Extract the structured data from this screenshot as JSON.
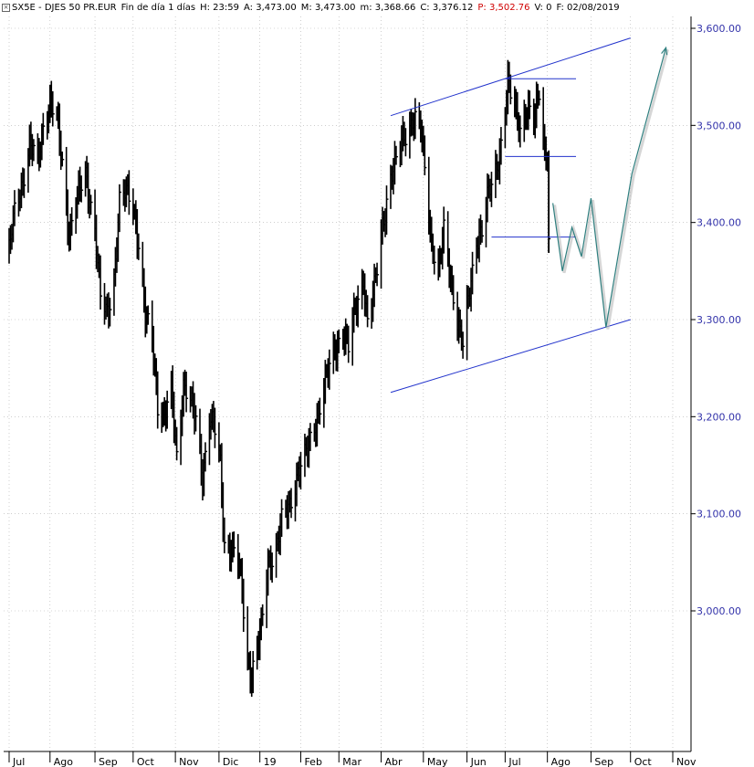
{
  "header": {
    "symbol": "SX5E - DJES 50 PR.EUR",
    "period": "Fin de día 1 días",
    "h_label": "H:",
    "h_value": "23:59",
    "a_label": "A:",
    "a_value": "3,473.00",
    "m_label": "M:",
    "m_value": "3,473.00",
    "mn_label": "m:",
    "mn_value": "3,368.66",
    "c_label": "C:",
    "c_value": "3,376.12",
    "p_label": "P:",
    "p_value": "3,502.76",
    "v_label": "V:",
    "v_value": "0",
    "f_label": "F:",
    "f_value": "02/08/2019"
  },
  "colors": {
    "price": "#000000",
    "channel": "#2233cc",
    "projection": "#2f7f7f",
    "axis_text": "#3333aa",
    "grid": "#b0b0b0"
  },
  "chart_data": {
    "type": "bar",
    "ylim": [
      2900,
      3600
    ],
    "yticks": [
      "3,600.00",
      "3,500.00",
      "3,400.00",
      "3,300.00",
      "3,200.00",
      "3,100.00",
      "3,000.00"
    ],
    "ytick_values": [
      3600,
      3500,
      3400,
      3300,
      3200,
      3100,
      3000
    ],
    "xticks": [
      "Jul",
      "Ago",
      "Sep",
      "Oct",
      "Nov",
      "Dic",
      "19",
      "Feb",
      "Mar",
      "Abr",
      "May",
      "Jun",
      "Jul",
      "Ago",
      "Sep",
      "Oct",
      "Nov"
    ],
    "xtick_dates": [
      "2018-07-02",
      "2018-08-01",
      "2018-09-03",
      "2018-10-01",
      "2018-11-01",
      "2018-12-03",
      "2019-01-02",
      "2019-02-01",
      "2019-03-01",
      "2019-04-01",
      "2019-05-02",
      "2019-06-03",
      "2019-07-01",
      "2019-08-01",
      "2019-09-02",
      "2019-10-01",
      "2019-11-01"
    ],
    "price_path": [
      [
        "2018-07-02",
        3370
      ],
      [
        "2018-07-06",
        3410
      ],
      [
        "2018-07-12",
        3445
      ],
      [
        "2018-07-17",
        3480
      ],
      [
        "2018-07-23",
        3460
      ],
      [
        "2018-07-27",
        3500
      ],
      [
        "2018-08-01",
        3525
      ],
      [
        "2018-08-06",
        3505
      ],
      [
        "2018-08-10",
        3460
      ],
      [
        "2018-08-15",
        3390
      ],
      [
        "2018-08-20",
        3420
      ],
      [
        "2018-08-27",
        3450
      ],
      [
        "2018-09-03",
        3395
      ],
      [
        "2018-09-07",
        3320
      ],
      [
        "2018-09-12",
        3305
      ],
      [
        "2018-09-17",
        3345
      ],
      [
        "2018-09-21",
        3420
      ],
      [
        "2018-09-26",
        3430
      ],
      [
        "2018-10-01",
        3420
      ],
      [
        "2018-10-05",
        3380
      ],
      [
        "2018-10-10",
        3300
      ],
      [
        "2018-10-15",
        3280
      ],
      [
        "2018-10-19",
        3215
      ],
      [
        "2018-10-24",
        3200
      ],
      [
        "2018-10-29",
        3225
      ],
      [
        "2018-11-02",
        3160
      ],
      [
        "2018-11-07",
        3235
      ],
      [
        "2018-11-12",
        3215
      ],
      [
        "2018-11-16",
        3195
      ],
      [
        "2018-11-21",
        3140
      ],
      [
        "2018-11-26",
        3200
      ],
      [
        "2018-11-30",
        3185
      ],
      [
        "2018-12-04",
        3150
      ],
      [
        "2018-12-07",
        3070
      ],
      [
        "2018-12-12",
        3065
      ],
      [
        "2018-12-17",
        3050
      ],
      [
        "2018-12-20",
        3020
      ],
      [
        "2018-12-24",
        2950
      ],
      [
        "2018-12-27",
        2935
      ],
      [
        "2019-01-03",
        2980
      ],
      [
        "2019-01-08",
        3050
      ],
      [
        "2019-01-14",
        3065
      ],
      [
        "2019-01-18",
        3090
      ],
      [
        "2019-01-24",
        3110
      ],
      [
        "2019-01-30",
        3145
      ],
      [
        "2019-02-05",
        3160
      ],
      [
        "2019-02-11",
        3190
      ],
      [
        "2019-02-18",
        3230
      ],
      [
        "2019-02-25",
        3265
      ],
      [
        "2019-03-04",
        3290
      ],
      [
        "2019-03-08",
        3270
      ],
      [
        "2019-03-13",
        3310
      ],
      [
        "2019-03-19",
        3345
      ],
      [
        "2019-03-22",
        3295
      ],
      [
        "2019-03-27",
        3330
      ],
      [
        "2019-04-02",
        3400
      ],
      [
        "2019-04-08",
        3445
      ],
      [
        "2019-04-12",
        3460
      ],
      [
        "2019-04-17",
        3490
      ],
      [
        "2019-04-24",
        3505
      ],
      [
        "2019-04-30",
        3495
      ],
      [
        "2019-05-03",
        3460
      ],
      [
        "2019-05-08",
        3380
      ],
      [
        "2019-05-13",
        3345
      ],
      [
        "2019-05-17",
        3390
      ],
      [
        "2019-05-22",
        3345
      ],
      [
        "2019-05-27",
        3300
      ],
      [
        "2019-05-31",
        3270
      ],
      [
        "2019-06-04",
        3320
      ],
      [
        "2019-06-10",
        3385
      ],
      [
        "2019-06-14",
        3390
      ],
      [
        "2019-06-19",
        3430
      ],
      [
        "2019-06-24",
        3455
      ],
      [
        "2019-06-28",
        3480
      ],
      [
        "2019-07-03",
        3540
      ],
      [
        "2019-07-08",
        3520
      ],
      [
        "2019-07-12",
        3500
      ],
      [
        "2019-07-17",
        3515
      ],
      [
        "2019-07-22",
        3500
      ],
      [
        "2019-07-26",
        3540
      ],
      [
        "2019-07-30",
        3475
      ],
      [
        "2019-08-01",
        3470
      ],
      [
        "2019-08-02",
        3376
      ]
    ],
    "channel_upper": [
      [
        "2019-04-08",
        3510
      ],
      [
        "2019-10-01",
        3590
      ]
    ],
    "channel_lower": [
      [
        "2019-04-08",
        3225
      ],
      [
        "2019-10-01",
        3300
      ]
    ],
    "horizontal_levels": [
      {
        "y": 3548,
        "from": "2019-07-01",
        "to": "2019-08-22"
      },
      {
        "y": 3468,
        "from": "2019-07-01",
        "to": "2019-08-22"
      },
      {
        "y": 3385,
        "from": "2019-06-21",
        "to": "2019-08-22"
      }
    ],
    "projection_path": [
      [
        "2019-08-05",
        3420
      ],
      [
        "2019-08-12",
        3350
      ],
      [
        "2019-08-19",
        3395
      ],
      [
        "2019-08-26",
        3365
      ],
      [
        "2019-09-02",
        3425
      ],
      [
        "2019-09-13",
        3292
      ],
      [
        "2019-10-02",
        3450
      ],
      [
        "2019-10-27",
        3580
      ]
    ]
  }
}
